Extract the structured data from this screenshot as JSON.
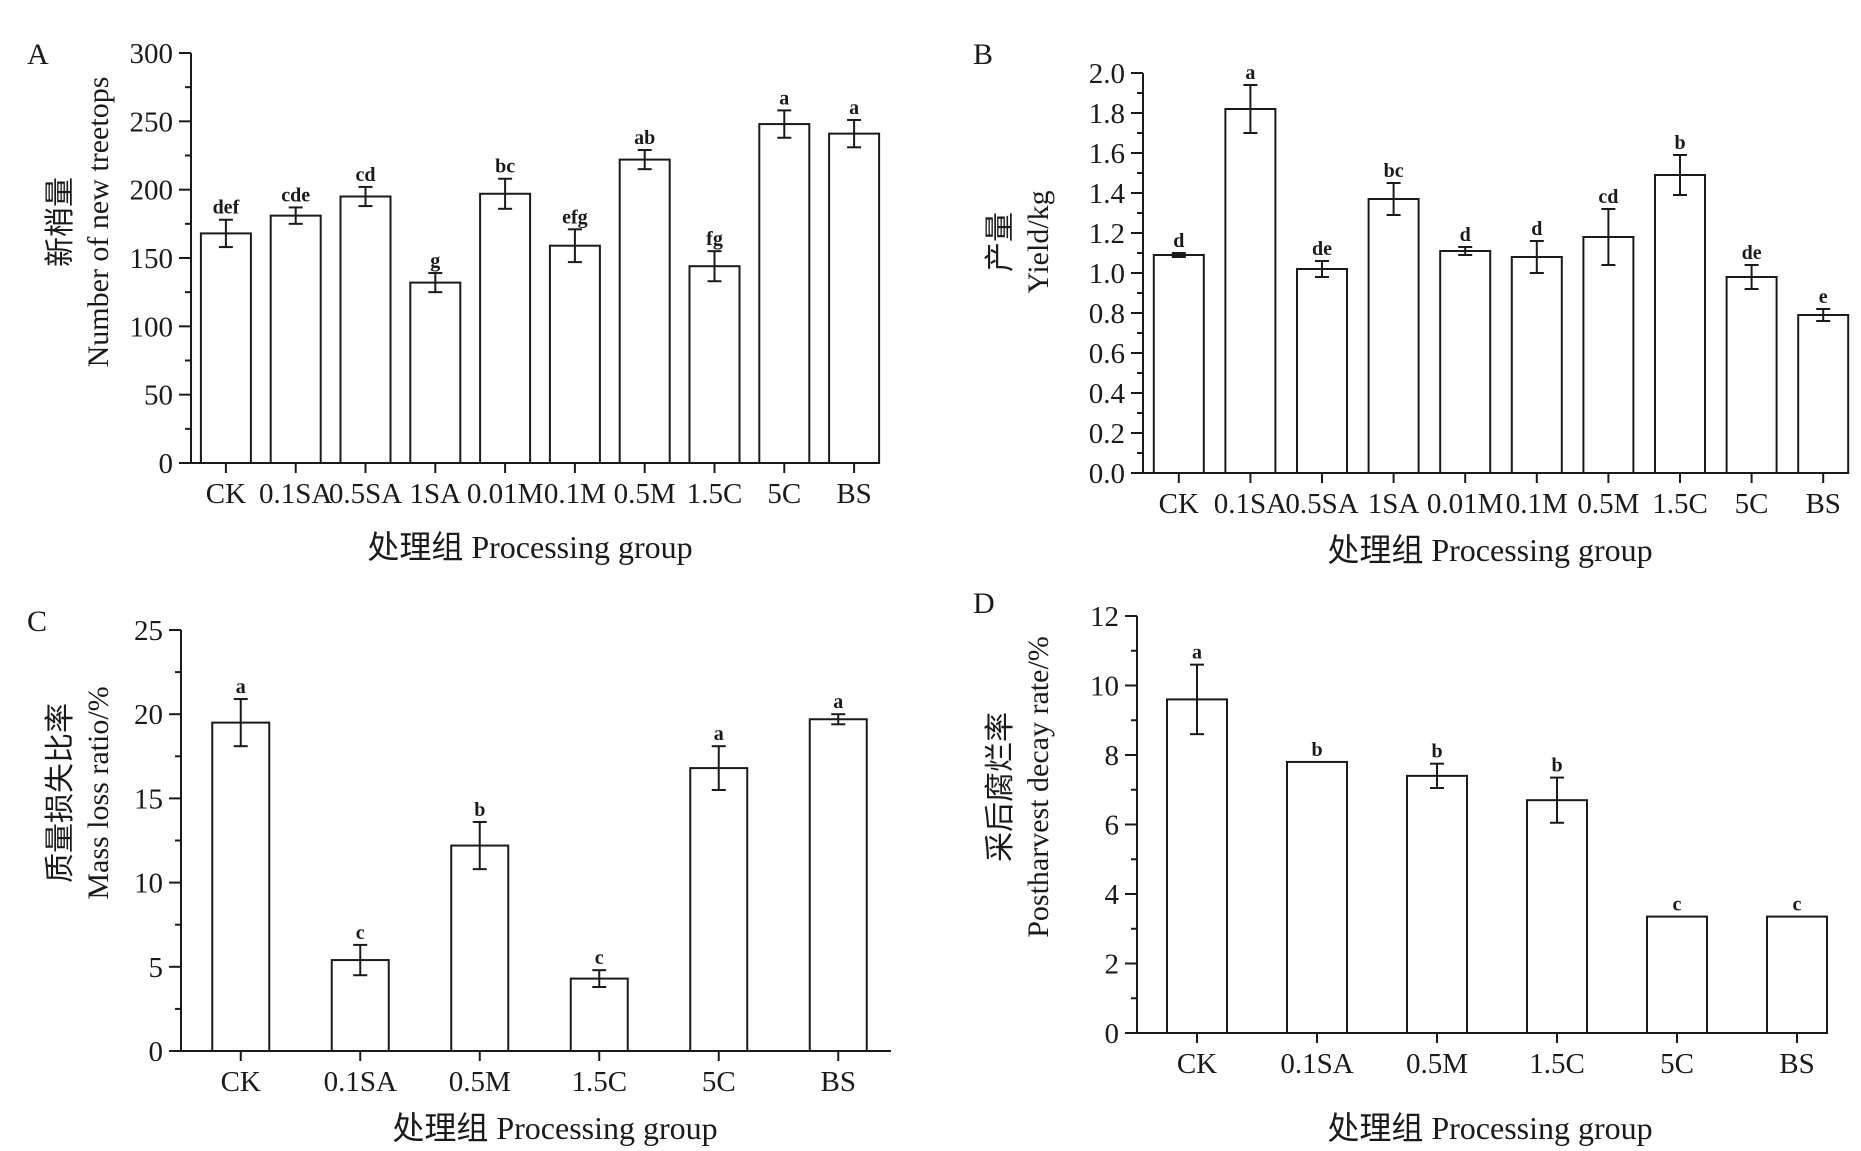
{
  "chart_data": [
    {
      "panel": "A",
      "type": "bar",
      "categories": [
        "CK",
        "0.1SA",
        "0.5SA",
        "1SA",
        "0.01M",
        "0.1M",
        "0.5M",
        "1.5C",
        "5C",
        "BS"
      ],
      "values": [
        168,
        181,
        195,
        132,
        197,
        159,
        222,
        144,
        248,
        241
      ],
      "errors": [
        10,
        6,
        7,
        7,
        11,
        12,
        7,
        11,
        10,
        10
      ],
      "letters": [
        "def",
        "cde",
        "cd",
        "g",
        "bc",
        "efg",
        "ab",
        "fg",
        "a",
        "a"
      ],
      "ylabel_cn": "新梢量",
      "ylabel_en": "Number of new treetops",
      "xlabel": "处理组 Processing group",
      "ylim": [
        0,
        300
      ],
      "yticks": [
        0,
        50,
        100,
        150,
        200,
        250,
        300
      ],
      "ytick_labels": [
        "0",
        "50",
        "100",
        "150",
        "200",
        "250",
        "300"
      ]
    },
    {
      "panel": "B",
      "type": "bar",
      "categories": [
        "CK",
        "0.1SA",
        "0.5SA",
        "1SA",
        "0.01M",
        "0.1M",
        "0.5M",
        "1.5C",
        "5C",
        "BS"
      ],
      "values": [
        1.09,
        1.82,
        1.02,
        1.37,
        1.11,
        1.08,
        1.18,
        1.49,
        0.98,
        0.79
      ],
      "errors": [
        0.01,
        0.12,
        0.04,
        0.08,
        0.02,
        0.08,
        0.14,
        0.1,
        0.06,
        0.03
      ],
      "letters": [
        "d",
        "a",
        "de",
        "bc",
        "d",
        "d",
        "cd",
        "b",
        "de",
        "e"
      ],
      "ylabel_cn": "产量",
      "ylabel_en": "Yield/kg",
      "xlabel": "处理组 Processing group",
      "ylim": [
        0,
        2.0
      ],
      "yticks": [
        0,
        0.2,
        0.4,
        0.6,
        0.8,
        1.0,
        1.2,
        1.4,
        1.6,
        1.8,
        2.0
      ],
      "ytick_labels": [
        "0.0",
        "0.2",
        "0.4",
        "0.6",
        "0.8",
        "1.0",
        "1.2",
        "1.4",
        "1.6",
        "1.8",
        "2.0"
      ]
    },
    {
      "panel": "C",
      "type": "bar",
      "categories": [
        "CK",
        "0.1SA",
        "0.5M",
        "1.5C",
        "5C",
        "BS"
      ],
      "values": [
        19.5,
        5.4,
        12.2,
        4.3,
        16.8,
        19.7
      ],
      "errors": [
        1.4,
        0.9,
        1.4,
        0.5,
        1.3,
        0.3
      ],
      "letters": [
        "a",
        "c",
        "b",
        "c",
        "a",
        "a"
      ],
      "ylabel_cn": "质量损失比率",
      "ylabel_en": "Mass loss ratio/%",
      "xlabel": "处理组 Processing group",
      "ylim": [
        0,
        25
      ],
      "yticks": [
        0,
        5,
        10,
        15,
        20,
        25
      ],
      "ytick_labels": [
        "0",
        "5",
        "10",
        "15",
        "20",
        "25"
      ]
    },
    {
      "panel": "D",
      "type": "bar",
      "categories": [
        "CK",
        "0.1SA",
        "0.5M",
        "1.5C",
        "5C",
        "BS"
      ],
      "values": [
        9.6,
        7.8,
        7.4,
        6.7,
        3.35,
        3.35
      ],
      "errors": [
        1.0,
        0.0,
        0.35,
        0.65,
        0.0,
        0.0
      ],
      "letters": [
        "a",
        "b",
        "b",
        "b",
        "c",
        "c"
      ],
      "ylabel_cn": "采后腐烂率",
      "ylabel_en": "Postharvest decay rate/%",
      "xlabel": "处理组 Processing group",
      "ylim": [
        0,
        12
      ],
      "yticks": [
        0,
        2,
        4,
        6,
        8,
        10,
        12
      ],
      "ytick_labels": [
        "0",
        "2",
        "4",
        "6",
        "8",
        "10",
        "12"
      ]
    }
  ]
}
